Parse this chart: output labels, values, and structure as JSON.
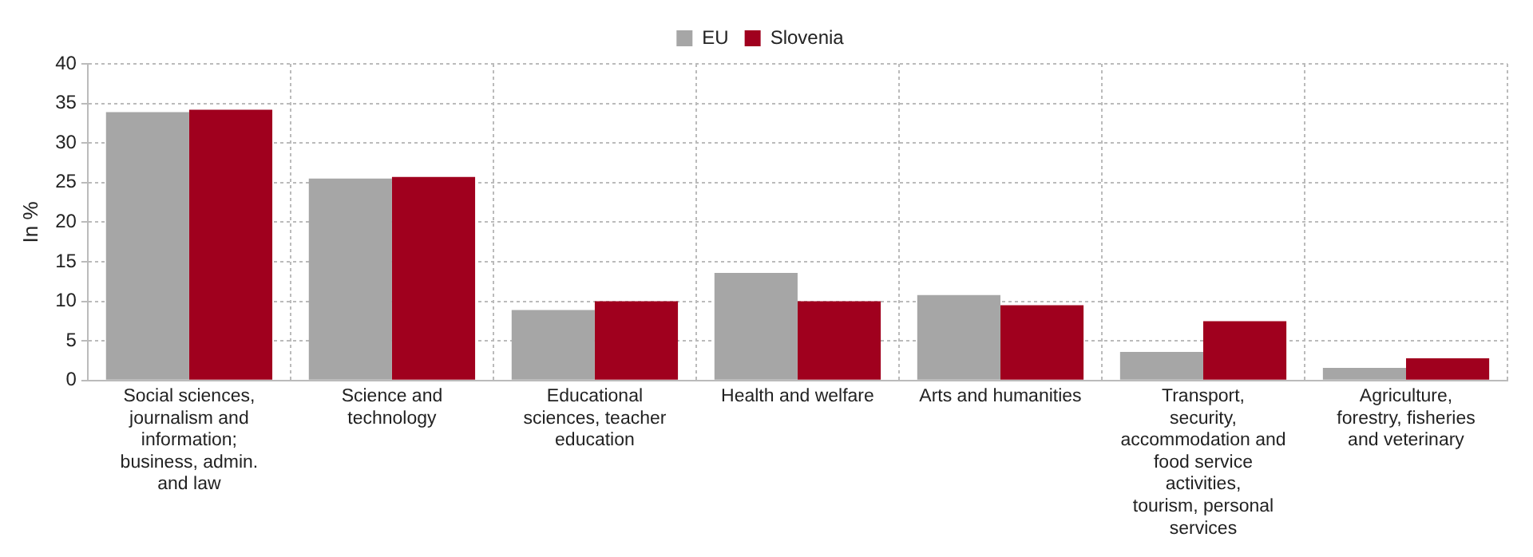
{
  "chart_data": {
    "type": "bar",
    "ylabel": "In %",
    "categories": [
      "Social sciences, journalism and information; business, admin. and law",
      "Science and technology",
      "Educational sciences, teacher education",
      "Health and welfare",
      "Arts and humanities",
      "Transport, security, accommodation and food service activities, tourism, personal services",
      "Agriculture, forestry, fisheries and veterinary"
    ],
    "series": [
      {
        "name": "EU",
        "color": "#a6a6a6",
        "values": [
          33.9,
          25.5,
          8.9,
          13.6,
          10.8,
          3.6,
          1.6
        ]
      },
      {
        "name": "Slovenia",
        "color": "#a0001e",
        "values": [
          34.2,
          25.7,
          10.0,
          10.0,
          9.5,
          7.5,
          2.8
        ]
      }
    ],
    "ylim": [
      0,
      40
    ],
    "yticks": [
      0,
      5,
      10,
      15,
      20,
      25,
      30,
      35,
      40
    ],
    "grid": true,
    "legend": "top"
  }
}
